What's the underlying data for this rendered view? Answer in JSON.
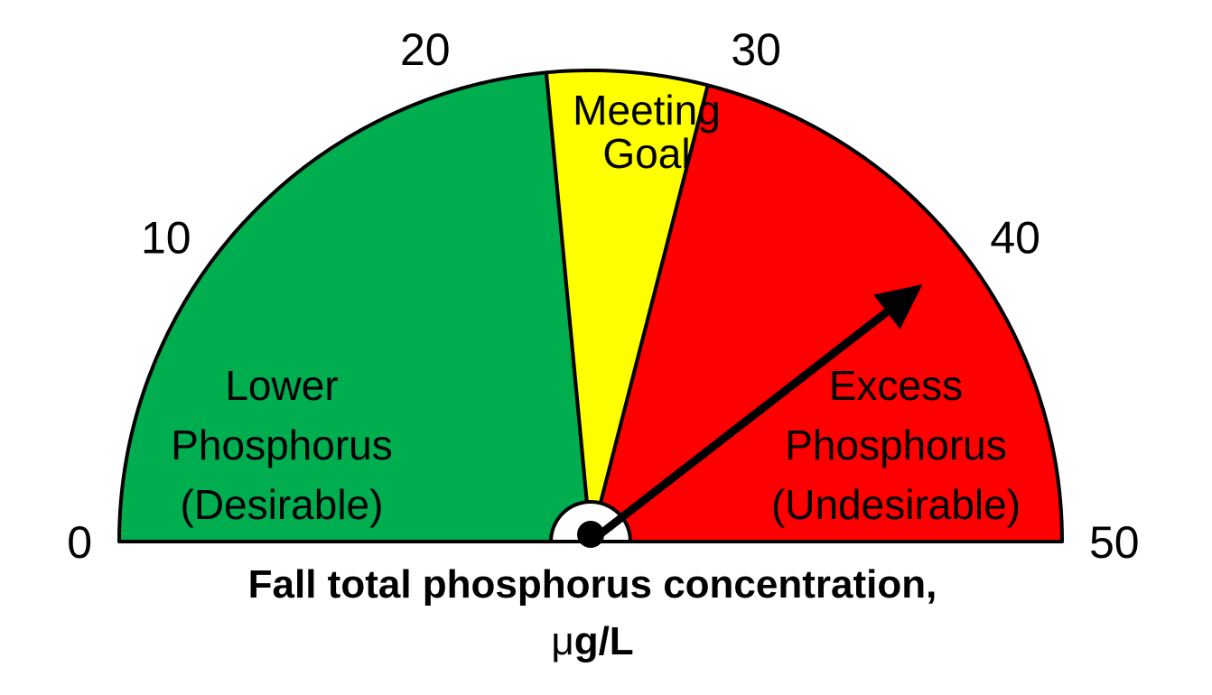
{
  "chart_data": {
    "type": "gauge",
    "range": [
      0,
      50
    ],
    "ticks": [
      {
        "value": 0,
        "label": "0"
      },
      {
        "value": 10,
        "label": "10"
      },
      {
        "value": 20,
        "label": "20"
      },
      {
        "value": 30,
        "label": "30"
      },
      {
        "value": 40,
        "label": "40"
      },
      {
        "value": 50,
        "label": "50"
      }
    ],
    "zones": [
      {
        "from": 0,
        "to": 23.5,
        "color": "#00ad4f",
        "lines": [
          "Lower",
          "Phosphorus",
          "(Desirable)"
        ]
      },
      {
        "from": 23.5,
        "to": 29,
        "color": "#ffff00",
        "lines": [
          "Meeting",
          "Goal"
        ]
      },
      {
        "from": 29,
        "to": 50,
        "color": "#ff0000",
        "lines": [
          "Excess",
          "Phosphorus",
          "(Undesirable)"
        ]
      }
    ],
    "needle_value": 39.5,
    "xlabel": {
      "line1": "Fall total phosphorus concentration,",
      "mu": "μ",
      "unit": "g/L"
    }
  }
}
